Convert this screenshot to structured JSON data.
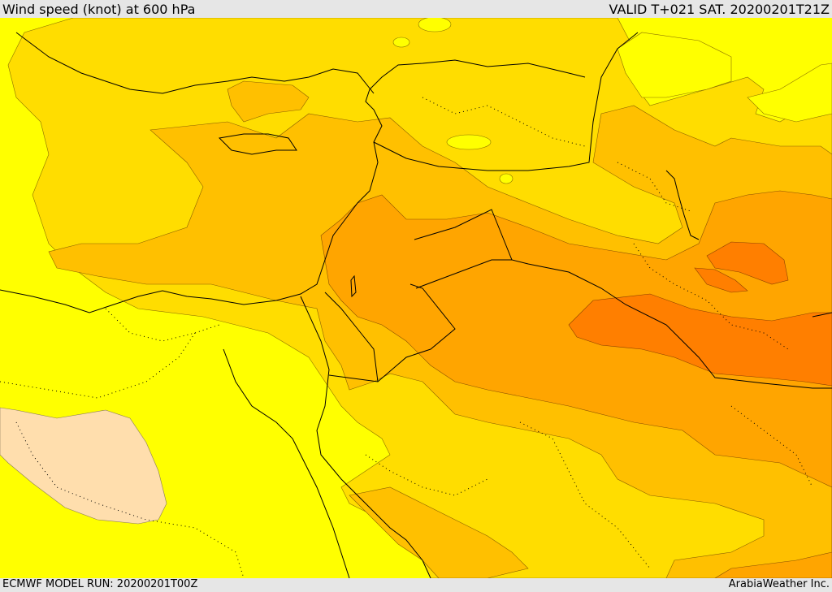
{
  "header": {
    "title": "Wind speed (knot) at 600 hPa",
    "valid": "VALID T+021 SAT. 20200201T21Z"
  },
  "footer": {
    "model_run": "ECMWF MODEL RUN: 20200201T00Z",
    "credit": "ArabiaWeather Inc."
  },
  "legend_colors": {
    "level_1": "#ffff00",
    "level_2": "#ffdd00",
    "level_3": "#ffc000",
    "level_4": "#ffa500",
    "level_5": "#ff7f00",
    "calm": "#ffdead"
  },
  "overlays": {
    "coastlines": "solid black",
    "borders": "solid black",
    "admin_lines": "dotted black"
  }
}
